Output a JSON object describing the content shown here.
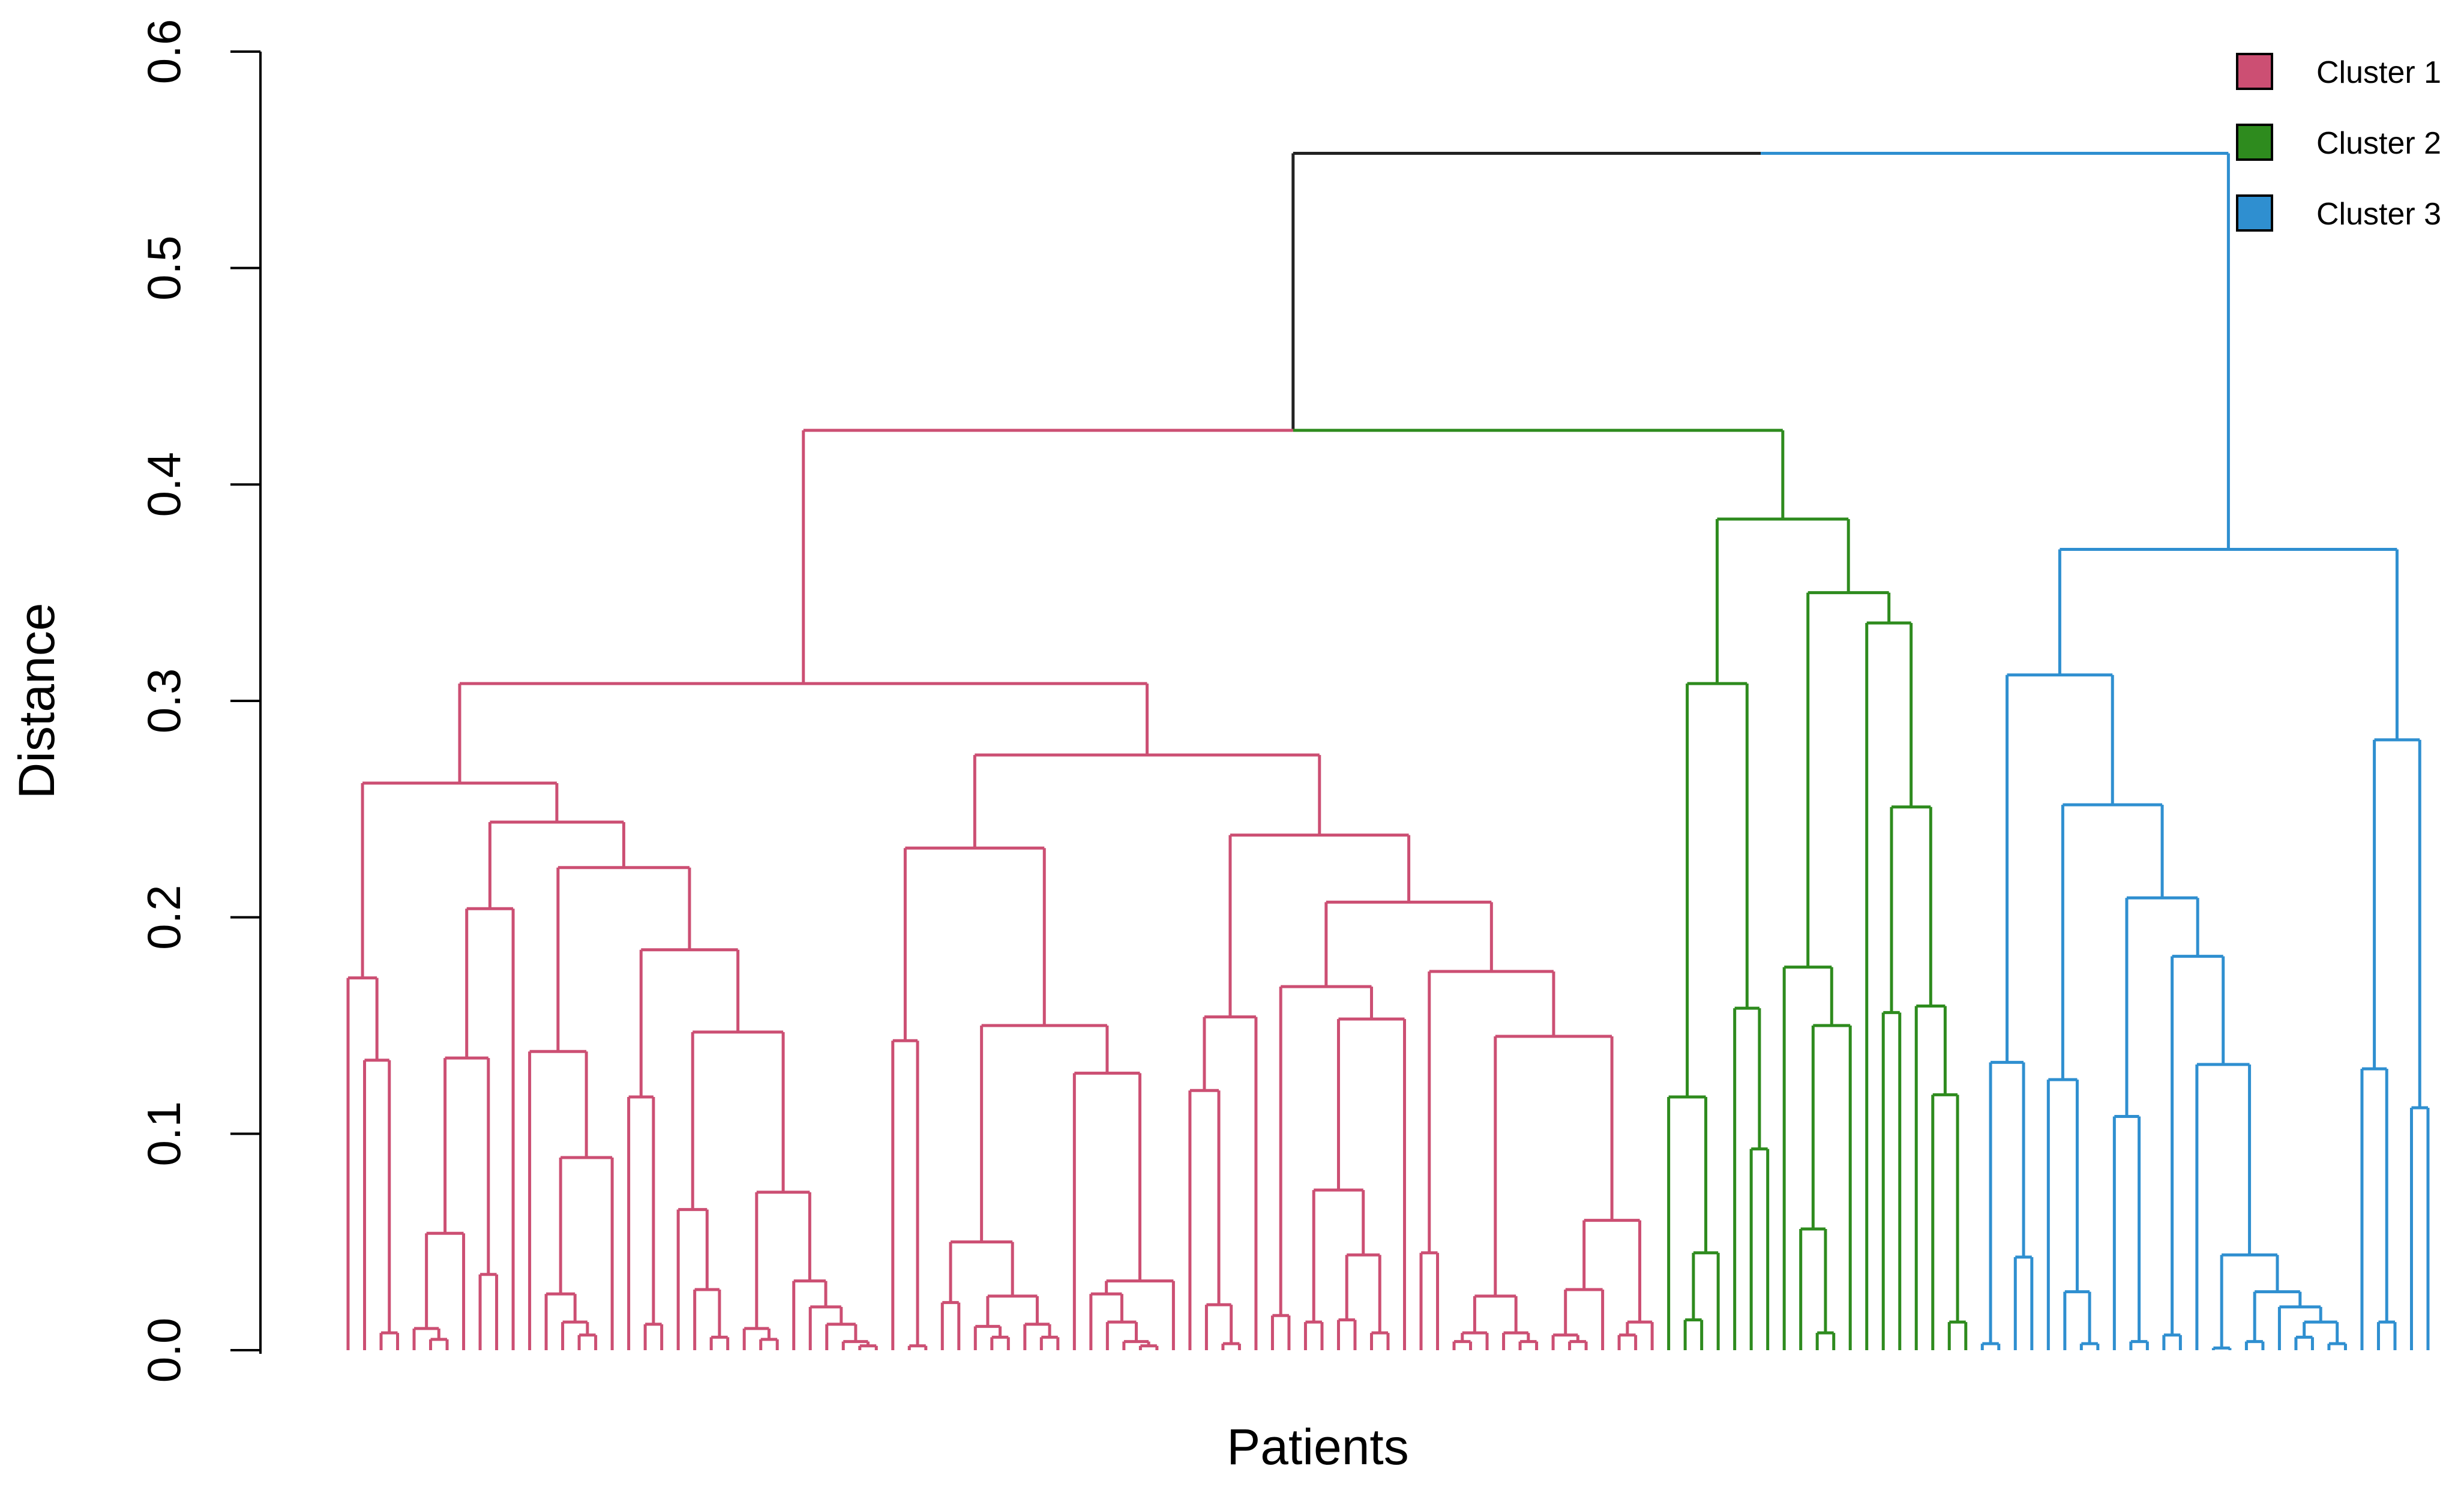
{
  "chart_data": {
    "type": "dendrogram",
    "title": "",
    "xlabel": "Patients",
    "ylabel": "Distance",
    "ylim": [
      0,
      0.6
    ],
    "yticks": [
      "0.0",
      "0.1",
      "0.2",
      "0.3",
      "0.4",
      "0.5",
      "0.6"
    ],
    "root_height": 0.553,
    "legend": [
      {
        "name": "Cluster 1",
        "color": "#cc4f73"
      },
      {
        "name": "Cluster 2",
        "color": "#2e8b1e"
      },
      {
        "name": "Cluster 3",
        "color": "#2f8fd0"
      }
    ],
    "branch_colors": {
      "root": "#222222",
      "c1": "#cc4f73",
      "c2": "#2e8b1e",
      "c3": "#2f8fd0"
    },
    "tree": [
      0.553,
      [
        0.425,
        [
          0.308,
          [
            0.262,
            [
              0.172,
              0,
              [
                0.134,
                0,
                [
                  0.008,
                  0,
                  0
                ]
              ]
            ],
            [
              0.244,
              [
                0.204,
                [
                  0.135,
                  [
                    0.054,
                    [
                      0.01,
                      0,
                      [
                        0.005,
                        0,
                        0
                      ]
                    ],
                    0
                  ],
                  [
                    0.035,
                    0,
                    0
                  ]
                ],
                0
              ],
              [
                0.223,
                [
                  0.138,
                  0,
                  [
                    0.089,
                    [
                      0.026,
                      0,
                      [
                        0.013,
                        0,
                        [
                          0.007,
                          0,
                          0
                        ]
                      ]
                    ],
                    0
                  ]
                ],
                [
                  0.185,
                  [
                    0.117,
                    0,
                    [
                      0.012,
                      0,
                      0
                    ]
                  ],
                  [
                    0.147,
                    [
                      0.065,
                      0,
                      [
                        0.028,
                        0,
                        [
                          0.006,
                          0,
                          0
                        ]
                      ]
                    ],
                    [
                      0.073,
                      [
                        0.01,
                        0,
                        [
                          0.005,
                          0,
                          0
                        ]
                      ],
                      [
                        0.032,
                        0,
                        [
                          0.02,
                          0,
                          [
                            0.012,
                            0,
                            [
                              0.004,
                              0,
                              [
                                0.002,
                                0,
                                0
                              ]
                            ]
                          ]
                        ]
                      ]
                    ]
                  ]
                ]
              ]
            ]
          ],
          [
            0.275,
            [
              0.232,
              [
                0.143,
                0,
                [
                  0.002,
                  0,
                  0
                ]
              ],
              [
                0.15,
                [
                  0.05,
                  [
                    0.022,
                    0,
                    0
                  ],
                  [
                    0.025,
                    [
                      0.011,
                      0,
                      [
                        0.006,
                        0,
                        0
                      ]
                    ],
                    [
                      0.012,
                      0,
                      [
                        0.006,
                        0,
                        0
                      ]
                    ]
                  ]
                ],
                [
                  0.128,
                  0,
                  [
                    0.032,
                    [
                      0.026,
                      0,
                      [
                        0.013,
                        0,
                        [
                          0.004,
                          0,
                          [
                            0.002,
                            0,
                            0
                          ]
                        ]
                      ]
                    ],
                    0
                  ]
                ]
              ]
            ],
            [
              0.238,
              [
                0.154,
                [
                  0.12,
                  0,
                  [
                    0.021,
                    0,
                    [
                      0.003,
                      0,
                      0
                    ]
                  ]
                ],
                0
              ],
              [
                0.207,
                [
                  0.168,
                  [
                    0.016,
                    0,
                    0
                  ],
                  [
                    0.153,
                    [
                      0.074,
                      [
                        0.013,
                        0,
                        0
                      ],
                      [
                        0.044,
                        [
                          0.014,
                          0,
                          0
                        ],
                        [
                          0.008,
                          0,
                          0
                        ]
                      ]
                    ],
                    0
                  ]
                ],
                [
                  0.175,
                  [
                    0.045,
                    0,
                    0
                  ],
                  [
                    0.145,
                    [
                      0.025,
                      [
                        0.008,
                        [
                          0.004,
                          0,
                          0
                        ],
                        0
                      ],
                      [
                        0.008,
                        0,
                        [
                          0.004,
                          0,
                          0
                        ]
                      ]
                    ],
                    [
                      0.06,
                      [
                        0.028,
                        [
                          0.007,
                          0,
                          [
                            0.004,
                            0,
                            0
                          ]
                        ],
                        0
                      ],
                      [
                        0.013,
                        [
                          0.007,
                          0,
                          0
                        ],
                        0
                      ]
                    ]
                  ]
                ]
              ]
            ]
          ]
        ],
        [
          0.384,
          [
            0.308,
            [
              0.117,
              0,
              [
                0.045,
                [
                  0.014,
                  0,
                  0
                ],
                0
              ]
            ],
            [
              0.158,
              0,
              [
                0.093,
                0,
                0
              ]
            ]
          ],
          [
            0.35,
            [
              0.177,
              0,
              [
                0.15,
                [
                  0.056,
                  0,
                  [
                    0.008,
                    0,
                    0
                  ]
                ],
                0
              ]
            ],
            [
              0.336,
              0,
              [
                0.251,
                [
                  0.156,
                  0,
                  0
                ],
                [
                  0.159,
                  0,
                  [
                    0.118,
                    0,
                    [
                      0.013,
                      0,
                      0
                    ]
                  ]
                ]
              ]
            ]
          ]
        ]
      ],
      [
        0.37,
        [
          0.312,
          [
            0.133,
            [
              0.003,
              0,
              0
            ],
            [
              0.043,
              0,
              0
            ]
          ],
          [
            0.252,
            [
              0.125,
              0,
              [
                0.027,
                0,
                [
                  0.003,
                  0,
                  0
                ]
              ]
            ],
            [
              0.209,
              [
                0.108,
                0,
                [
                  0.004,
                  0,
                  0
                ]
              ],
              [
                0.182,
                [
                  0.007,
                  0,
                  0
                ],
                [
                  0.132,
                  0,
                  [
                    0.044,
                    [
                      0.001,
                      0,
                      0
                    ],
                    [
                      0.027,
                      [
                        0.004,
                        0,
                        0
                      ],
                      [
                        0.02,
                        0,
                        [
                          0.013,
                          [
                            0.006,
                            0,
                            0
                          ],
                          [
                            0.003,
                            0,
                            0
                          ]
                        ]
                      ]
                    ]
                  ]
                ]
              ]
            ]
          ]
        ],
        [
          0.282,
          [
            0.13,
            0,
            [
              0.013,
              0,
              0
            ]
          ],
          [
            0.112,
            0,
            0
          ]
        ]
      ]
    ]
  }
}
